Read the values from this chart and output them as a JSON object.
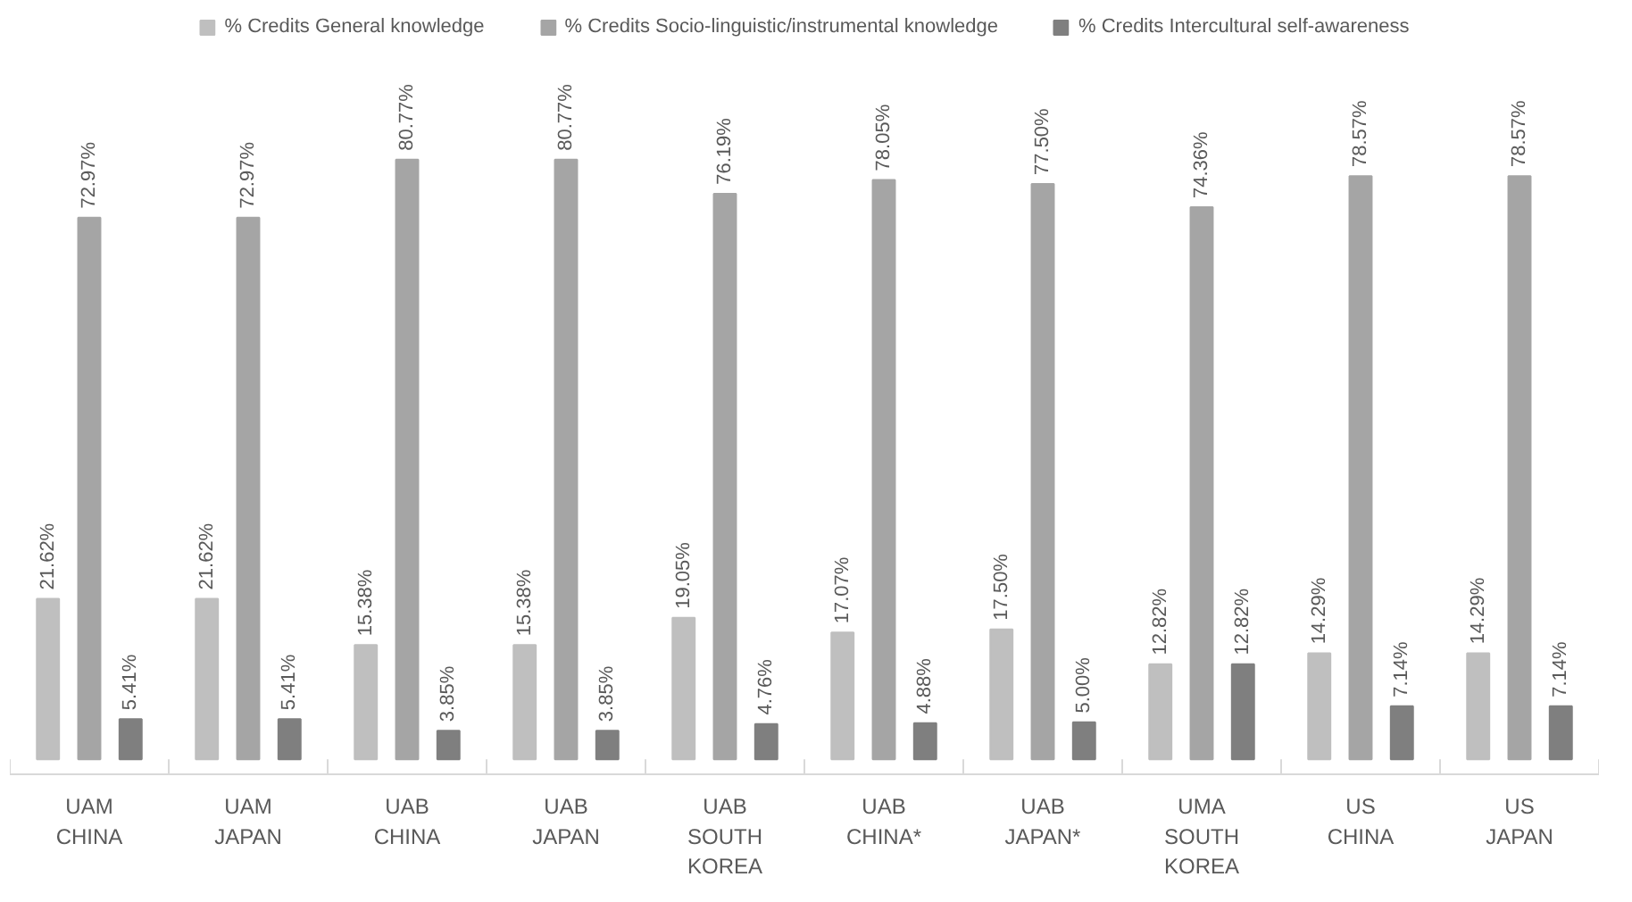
{
  "chart_data": {
    "type": "bar",
    "categories": [
      "UAM CHINA",
      "UAM JAPAN",
      "UAB CHINA",
      "UAB JAPAN",
      "UAB SOUTH KOREA",
      "UAB CHINA*",
      "UAB JAPAN*",
      "UMA SOUTH KOREA",
      "US CHINA",
      "US JAPAN"
    ],
    "series": [
      {
        "name": "% Credits General knowledge",
        "color": "#bfbfbf",
        "values": [
          21.62,
          21.62,
          15.38,
          15.38,
          19.05,
          17.07,
          17.5,
          12.82,
          14.29,
          14.29
        ],
        "value_labels": [
          "21.62%",
          "21.62%",
          "15.38%",
          "15.38%",
          "19.05%",
          "17.07%",
          "17.50%",
          "12.82%",
          "14.29%",
          "14.29%"
        ]
      },
      {
        "name": "% Credits Socio-linguistic/instrumental knowledge",
        "color": "#a5a5a5",
        "values": [
          72.97,
          72.97,
          80.77,
          80.77,
          76.19,
          78.05,
          77.5,
          74.36,
          78.57,
          78.57
        ],
        "value_labels": [
          "72.97%",
          "72.97%",
          "80.77%",
          "80.77%",
          "76.19%",
          "78.05%",
          "77.50%",
          "74.36%",
          "78.57%",
          "78.57%"
        ]
      },
      {
        "name": "% Credits Intercultural self-awareness",
        "color": "#7f7f7f",
        "values": [
          5.41,
          5.41,
          3.85,
          3.85,
          4.76,
          4.88,
          5.0,
          12.82,
          7.14,
          7.14
        ],
        "value_labels": [
          "5.41%",
          "5.41%",
          "3.85%",
          "3.85%",
          "4.76%",
          "4.88%",
          "5.00%",
          "12.82%",
          "7.14%",
          "7.14%"
        ]
      }
    ],
    "legend": "top",
    "grid": false
  }
}
